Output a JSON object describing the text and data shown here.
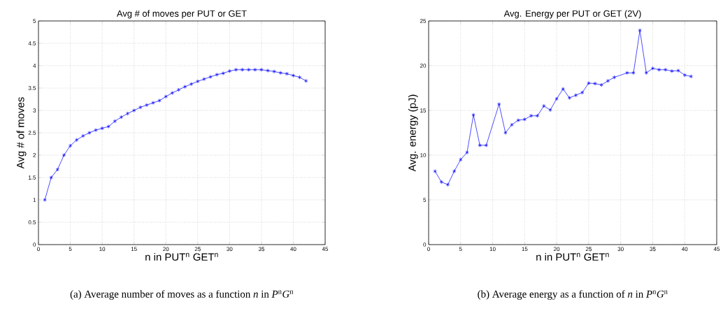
{
  "chart_data": [
    {
      "type": "line",
      "title": "Avg # of moves per PUT or GET",
      "xlabel": "n in PUT$^{n}$ GET$^{n}$",
      "ylabel": "Avg # of moves",
      "x": [
        1,
        2,
        3,
        4,
        5,
        6,
        7,
        8,
        9,
        10,
        11,
        12,
        13,
        14,
        15,
        16,
        17,
        18,
        19,
        20,
        21,
        22,
        23,
        24,
        25,
        26,
        27,
        28,
        29,
        30,
        31,
        32,
        33,
        34,
        35,
        36,
        37,
        38,
        39,
        40,
        41,
        42
      ],
      "series": [
        {
          "color": "#0000ff",
          "values": [
            1.0,
            1.5,
            1.68,
            2.0,
            2.21,
            2.34,
            2.43,
            2.5,
            2.56,
            2.6,
            2.64,
            2.76,
            2.85,
            2.93,
            3.0,
            3.07,
            3.12,
            3.17,
            3.22,
            3.31,
            3.39,
            3.46,
            3.53,
            3.59,
            3.65,
            3.7,
            3.75,
            3.8,
            3.83,
            3.88,
            3.91,
            3.91,
            3.91,
            3.91,
            3.91,
            3.89,
            3.87,
            3.84,
            3.82,
            3.78,
            3.74,
            3.66
          ]
        }
      ],
      "xlim": [
        0,
        45
      ],
      "ylim": [
        0,
        5
      ],
      "xticks": [
        0,
        5,
        10,
        15,
        20,
        25,
        30,
        35,
        40,
        45
      ],
      "yticks": [
        0,
        0.5,
        1,
        1.5,
        2,
        2.5,
        3,
        3.5,
        4,
        4.5,
        5
      ],
      "grid": true,
      "marker": "cross",
      "line_style": "solid",
      "annotations": [
        "(a) Average number of moves as a function *n* in *P*$^{n}$*G*$^{n}$"
      ]
    },
    {
      "type": "line",
      "title": "Avg. Energy per PUT or GET (2V)",
      "xlabel": "n in PUT$^{n}$ GET$^{n}$",
      "ylabel": "Avg. energy (pJ)",
      "x": [
        1,
        2,
        3,
        4,
        5,
        6,
        7,
        8,
        9,
        11,
        12,
        13,
        14,
        15,
        16,
        17,
        18,
        19,
        20,
        21,
        22,
        23,
        24,
        25,
        26,
        27,
        28,
        29,
        31,
        32,
        33,
        34,
        35,
        36,
        37,
        38,
        39,
        40,
        41
      ],
      "series": [
        {
          "color": "#0000ff",
          "values": [
            8.2,
            7.0,
            6.7,
            8.2,
            9.5,
            10.3,
            14.5,
            11.1,
            11.1,
            15.7,
            12.5,
            13.4,
            13.9,
            14.0,
            14.4,
            14.4,
            15.5,
            15.05,
            16.3,
            17.4,
            16.4,
            16.7,
            17.0,
            18.05,
            18.0,
            17.85,
            18.3,
            18.7,
            19.2,
            19.2,
            23.95,
            19.2,
            19.7,
            19.55,
            19.55,
            19.4,
            19.45,
            18.95,
            18.8
          ]
        }
      ],
      "xlim": [
        0,
        45
      ],
      "ylim": [
        0,
        25
      ],
      "xticks": [
        0,
        5,
        10,
        15,
        20,
        25,
        30,
        35,
        40,
        45
      ],
      "yticks": [
        0,
        5,
        10,
        15,
        20,
        25
      ],
      "grid": true,
      "marker": "cross",
      "line_style": "solid",
      "annotations": [
        "(b) Average energy as a function of *n* in *P*$^{n}$*G*$^{n}$"
      ]
    }
  ]
}
